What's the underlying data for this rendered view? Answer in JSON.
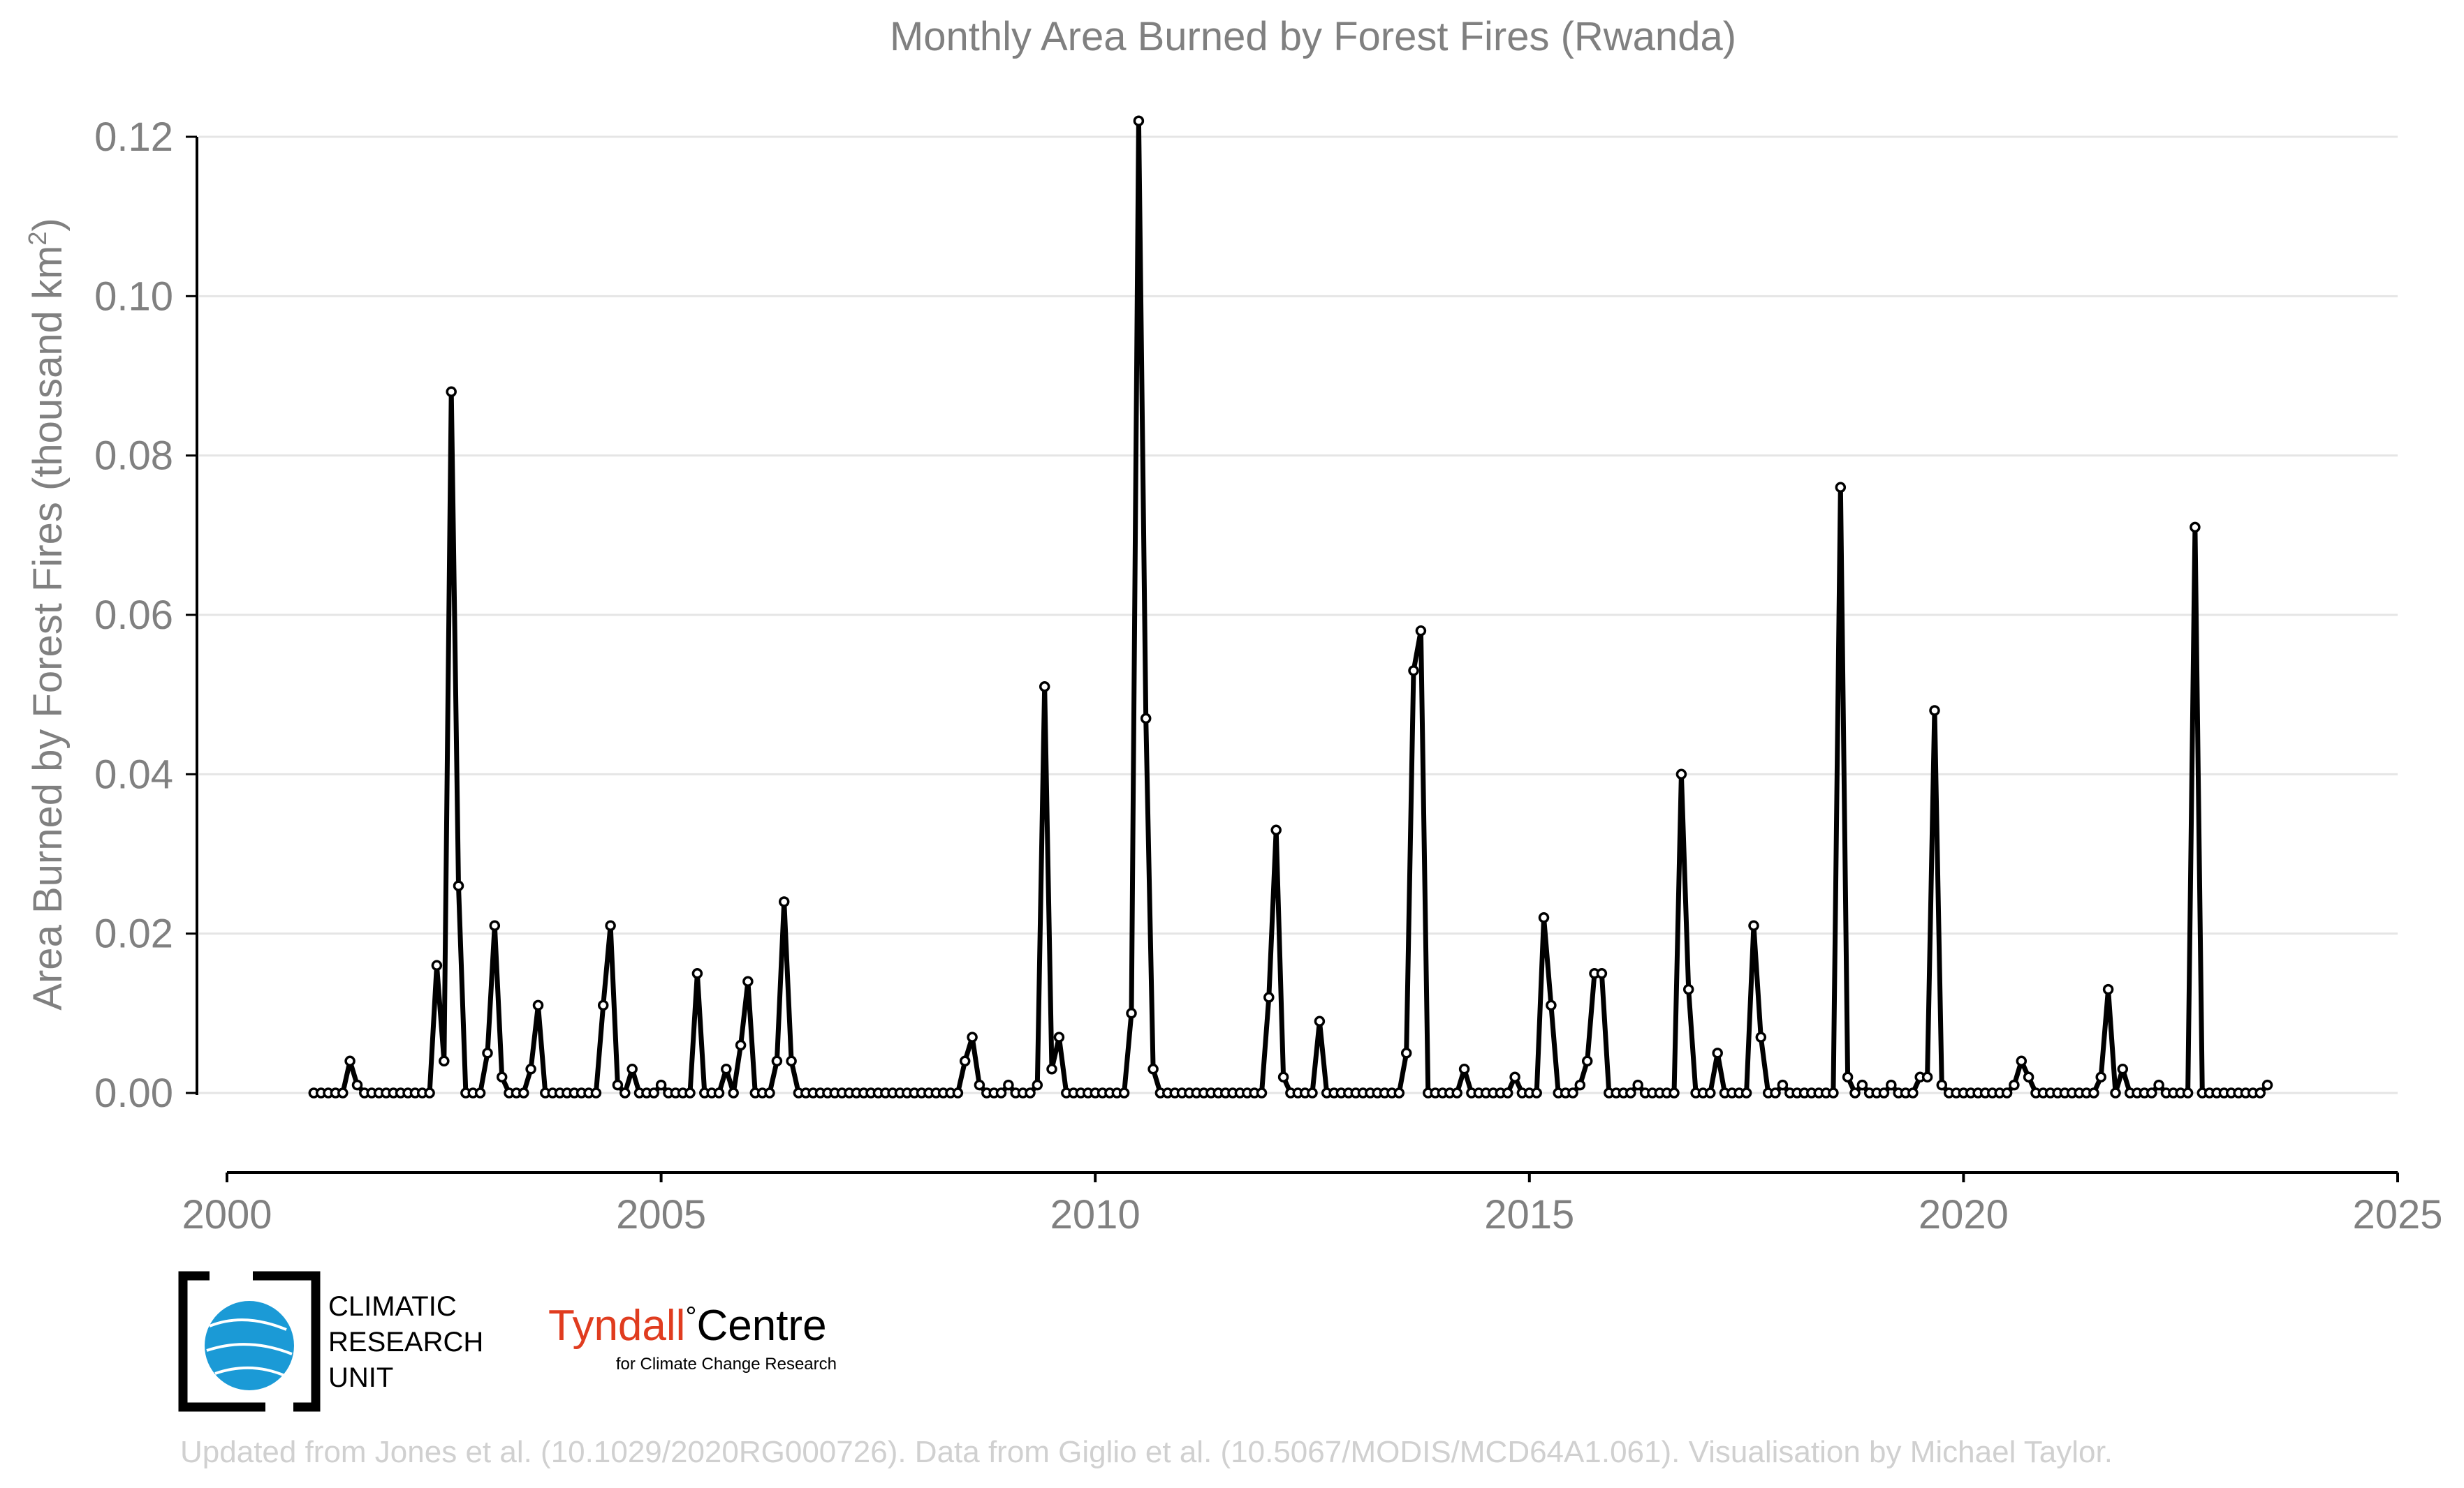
{
  "chart_data": {
    "type": "line",
    "title": "Monthly Area Burned by Forest Fires (Rwanda)",
    "ylabel_main": "Area Burned by Forest Fires (thousand km",
    "ylabel_sup": "2",
    "ylabel_end": ")",
    "xlabel": "",
    "xlim": [
      2000,
      2025
    ],
    "ylim": [
      -0.01,
      0.124
    ],
    "x_ticks": [
      "2000",
      "2005",
      "2010",
      "2015",
      "2020",
      "2025"
    ],
    "y_ticks": [
      "0.00",
      "0.02",
      "0.04",
      "0.06",
      "0.08",
      "0.10",
      "0.12"
    ],
    "grid": "horizontal",
    "start_year": 2001,
    "start_month": 1,
    "values": [
      0.0,
      0.0,
      0.0,
      0.0,
      0.0,
      0.004,
      0.001,
      0.0,
      0.0,
      0.0,
      0.0,
      0.0,
      0.0,
      0.0,
      0.0,
      0.0,
      0.0,
      0.016,
      0.004,
      0.088,
      0.026,
      0.0,
      0.0,
      0.0,
      0.005,
      0.021,
      0.002,
      0.0,
      0.0,
      0.0,
      0.003,
      0.011,
      0.0,
      0.0,
      0.0,
      0.0,
      0.0,
      0.0,
      0.0,
      0.0,
      0.011,
      0.021,
      0.001,
      0.0,
      0.003,
      0.0,
      0.0,
      0.0,
      0.001,
      0.0,
      0.0,
      0.0,
      0.0,
      0.015,
      0.0,
      0.0,
      0.0,
      0.003,
      0.0,
      0.006,
      0.014,
      0.0,
      0.0,
      0.0,
      0.004,
      0.024,
      0.004,
      0.0,
      0.0,
      0.0,
      0.0,
      0.0,
      0.0,
      0.0,
      0.0,
      0.0,
      0.0,
      0.0,
      0.0,
      0.0,
      0.0,
      0.0,
      0.0,
      0.0,
      0.0,
      0.0,
      0.0,
      0.0,
      0.0,
      0.0,
      0.004,
      0.007,
      0.001,
      0.0,
      0.0,
      0.0,
      0.001,
      0.0,
      0.0,
      0.0,
      0.001,
      0.051,
      0.003,
      0.007,
      0.0,
      0.0,
      0.0,
      0.0,
      0.0,
      0.0,
      0.0,
      0.0,
      0.0,
      0.01,
      0.122,
      0.047,
      0.003,
      0.0,
      0.0,
      0.0,
      0.0,
      0.0,
      0.0,
      0.0,
      0.0,
      0.0,
      0.0,
      0.0,
      0.0,
      0.0,
      0.0,
      0.0,
      0.012,
      0.033,
      0.002,
      0.0,
      0.0,
      0.0,
      0.0,
      0.009,
      0.0,
      0.0,
      0.0,
      0.0,
      0.0,
      0.0,
      0.0,
      0.0,
      0.0,
      0.0,
      0.0,
      0.005,
      0.053,
      0.058,
      0.0,
      0.0,
      0.0,
      0.0,
      0.0,
      0.003,
      0.0,
      0.0,
      0.0,
      0.0,
      0.0,
      0.0,
      0.002,
      0.0,
      0.0,
      0.0,
      0.022,
      0.011,
      0.0,
      0.0,
      0.0,
      0.001,
      0.004,
      0.015,
      0.015,
      0.0,
      0.0,
      0.0,
      0.0,
      0.001,
      0.0,
      0.0,
      0.0,
      0.0,
      0.0,
      0.04,
      0.013,
      0.0,
      0.0,
      0.0,
      0.005,
      0.0,
      0.0,
      0.0,
      0.0,
      0.021,
      0.007,
      0.0,
      0.0,
      0.001,
      0.0,
      0.0,
      0.0,
      0.0,
      0.0,
      0.0,
      0.0,
      0.076,
      0.002,
      0.0,
      0.001,
      0.0,
      0.0,
      0.0,
      0.001,
      0.0,
      0.0,
      0.0,
      0.002,
      0.002,
      0.048,
      0.001,
      0.0,
      0.0,
      0.0,
      0.0,
      0.0,
      0.0,
      0.0,
      0.0,
      0.0,
      0.001,
      0.004,
      0.002,
      0.0,
      0.0,
      0.0,
      0.0,
      0.0,
      0.0,
      0.0,
      0.0,
      0.0,
      0.002,
      0.013,
      0.0,
      0.003,
      0.0,
      0.0,
      0.0,
      0.0,
      0.001,
      0.0,
      0.0,
      0.0,
      0.0,
      0.071,
      0.0,
      0.0,
      0.0,
      0.0,
      0.0,
      0.0,
      0.0,
      0.0,
      0.0,
      0.001
    ],
    "colors": {
      "line": "#000000",
      "marker_fill": "#ffffff",
      "text": "#808080",
      "grid": "#e5e5e5",
      "credit": "#d0d0d0",
      "tyndall_red": "#e03c1f",
      "cru_blue": "#1b9ad6"
    }
  },
  "logos": {
    "cru_line1": "CLIMATIC",
    "cru_line2": "RESEARCH",
    "cru_line3": "UNIT",
    "tyndall_name": "Tyndall",
    "tyndall_degree": "°",
    "tyndall_centre": "Centre",
    "tyndall_sub": "for Climate Change Research"
  },
  "credit": "Updated from Jones et al. (10.1029/2020RG000726). Data from Giglio et al. (10.5067/MODIS/MCD64A1.061). Visualisation by Michael Taylor."
}
